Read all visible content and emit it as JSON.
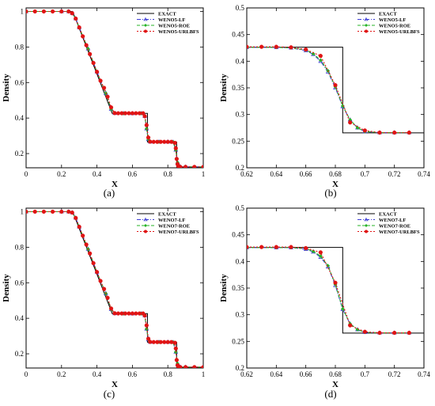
{
  "colors": {
    "exact": "#000000",
    "lf": "#3b3bd6",
    "roe": "#27b327",
    "urlbfs": "#e01414"
  },
  "chart_data": [
    {
      "panel": "(a)",
      "type": "line",
      "xlabel": "X",
      "ylabel": "Density",
      "xlim": [
        0,
        1
      ],
      "ylim": [
        0.12,
        1.02
      ],
      "xticks": [
        0,
        0.2,
        0.4,
        0.6,
        0.8,
        1
      ],
      "xtick_labels": [
        "0",
        "0.2",
        "0.4",
        "0.6",
        "0.8",
        "1"
      ],
      "yticks": [
        0.2,
        0.4,
        0.6,
        0.8,
        1
      ],
      "ytick_labels": [
        "0.2",
        "0.4",
        "0.6",
        "0.8",
        "1"
      ],
      "legend": [
        "EXACT",
        "WENO5-LF",
        "WENO5-ROE",
        "WENO5-URLBFS"
      ],
      "legend_position": "top-right",
      "exact": {
        "x": [
          0,
          0.263,
          0.486,
          0.685,
          0.685,
          0.85,
          0.85,
          1
        ],
        "y": [
          1,
          1,
          0.4263,
          0.4263,
          0.2656,
          0.2656,
          0.125,
          0.125
        ]
      },
      "series": [
        {
          "name": "WENO5-LF",
          "x": [
            0,
            0.2,
            0.24,
            0.26,
            0.28,
            0.3,
            0.35,
            0.4,
            0.45,
            0.48,
            0.5,
            0.55,
            0.6,
            0.65,
            0.67,
            0.68,
            0.69,
            0.7,
            0.75,
            0.8,
            0.83,
            0.845,
            0.855,
            0.87,
            0.9,
            1
          ],
          "y": [
            1,
            1,
            1,
            0.99,
            0.96,
            0.91,
            0.79,
            0.66,
            0.54,
            0.45,
            0.427,
            0.426,
            0.426,
            0.426,
            0.41,
            0.34,
            0.28,
            0.266,
            0.266,
            0.266,
            0.265,
            0.22,
            0.15,
            0.127,
            0.125,
            0.125
          ]
        },
        {
          "name": "WENO5-ROE",
          "x": [
            0,
            0.2,
            0.24,
            0.26,
            0.28,
            0.3,
            0.35,
            0.4,
            0.45,
            0.48,
            0.5,
            0.55,
            0.6,
            0.65,
            0.67,
            0.68,
            0.69,
            0.7,
            0.75,
            0.8,
            0.83,
            0.845,
            0.855,
            0.87,
            0.9,
            1
          ],
          "y": [
            1,
            1,
            1,
            0.99,
            0.96,
            0.91,
            0.79,
            0.66,
            0.54,
            0.45,
            0.427,
            0.426,
            0.426,
            0.426,
            0.41,
            0.34,
            0.28,
            0.266,
            0.266,
            0.266,
            0.265,
            0.22,
            0.15,
            0.127,
            0.125,
            0.125
          ]
        },
        {
          "name": "WENO5-URLBFS",
          "x": [
            0,
            0.05,
            0.1,
            0.15,
            0.2,
            0.24,
            0.26,
            0.28,
            0.3,
            0.32,
            0.34,
            0.36,
            0.38,
            0.4,
            0.42,
            0.44,
            0.46,
            0.48,
            0.5,
            0.52,
            0.54,
            0.56,
            0.58,
            0.6,
            0.62,
            0.64,
            0.66,
            0.67,
            0.68,
            0.69,
            0.7,
            0.72,
            0.74,
            0.76,
            0.78,
            0.8,
            0.82,
            0.84,
            0.845,
            0.85,
            0.855,
            0.86,
            0.87,
            0.9,
            0.95,
            1
          ],
          "y": [
            1,
            1,
            1,
            1,
            1,
            1,
            0.99,
            0.96,
            0.91,
            0.86,
            0.81,
            0.76,
            0.71,
            0.66,
            0.61,
            0.57,
            0.52,
            0.46,
            0.428,
            0.427,
            0.427,
            0.427,
            0.427,
            0.427,
            0.427,
            0.427,
            0.427,
            0.41,
            0.36,
            0.29,
            0.267,
            0.266,
            0.266,
            0.266,
            0.266,
            0.266,
            0.266,
            0.26,
            0.23,
            0.17,
            0.14,
            0.128,
            0.125,
            0.125,
            0.125,
            0.125
          ]
        }
      ]
    },
    {
      "panel": "(b)",
      "type": "line",
      "xlabel": "X",
      "ylabel": "Density",
      "xlim": [
        0.62,
        0.74
      ],
      "ylim": [
        0.2,
        0.5
      ],
      "xticks": [
        0.62,
        0.64,
        0.66,
        0.68,
        0.7,
        0.72,
        0.74
      ],
      "xtick_labels": [
        "0.62",
        "0.64",
        "0.66",
        "0.68",
        "0.7",
        "0.72",
        "0.74"
      ],
      "yticks": [
        0.2,
        0.25,
        0.3,
        0.35,
        0.4,
        0.45,
        0.5
      ],
      "ytick_labels": [
        "0.2",
        "0.25",
        "0.3",
        "0.35",
        "0.4",
        "0.45",
        "0.5"
      ],
      "legend": [
        "EXACT",
        "WENO5-LF",
        "WENO5-ROE",
        "WENO5-URLBFS"
      ],
      "legend_position": "top-right",
      "exact": {
        "x": [
          0.62,
          0.685,
          0.685,
          0.74
        ],
        "y": [
          0.4263,
          0.4263,
          0.2656,
          0.2656
        ]
      },
      "series": [
        {
          "name": "WENO5-LF",
          "x": [
            0.62,
            0.64,
            0.65,
            0.66,
            0.665,
            0.67,
            0.675,
            0.68,
            0.685,
            0.69,
            0.695,
            0.7,
            0.71,
            0.72,
            0.73
          ],
          "y": [
            0.426,
            0.426,
            0.425,
            0.42,
            0.413,
            0.4,
            0.38,
            0.35,
            0.315,
            0.29,
            0.275,
            0.268,
            0.266,
            0.266,
            0.266
          ]
        },
        {
          "name": "WENO5-ROE",
          "x": [
            0.62,
            0.64,
            0.65,
            0.66,
            0.665,
            0.67,
            0.675,
            0.68,
            0.685,
            0.69,
            0.695,
            0.7,
            0.71,
            0.72,
            0.73
          ],
          "y": [
            0.426,
            0.426,
            0.425,
            0.421,
            0.414,
            0.402,
            0.382,
            0.352,
            0.316,
            0.29,
            0.275,
            0.268,
            0.266,
            0.266,
            0.266
          ]
        },
        {
          "name": "WENO5-URLBFS",
          "x": [
            0.62,
            0.63,
            0.64,
            0.65,
            0.66,
            0.67,
            0.68,
            0.69,
            0.7,
            0.71,
            0.72,
            0.73
          ],
          "y": [
            0.427,
            0.427,
            0.427,
            0.426,
            0.422,
            0.41,
            0.355,
            0.285,
            0.27,
            0.266,
            0.266,
            0.266
          ]
        }
      ]
    },
    {
      "panel": "(c)",
      "type": "line",
      "xlabel": "X",
      "ylabel": "Density",
      "xlim": [
        0,
        1
      ],
      "ylim": [
        0.12,
        1.02
      ],
      "xticks": [
        0,
        0.2,
        0.4,
        0.6,
        0.8,
        1
      ],
      "xtick_labels": [
        "0",
        "0.2",
        "0.4",
        "0.6",
        "0.8",
        "1"
      ],
      "yticks": [
        0.2,
        0.4,
        0.6,
        0.8,
        1
      ],
      "ytick_labels": [
        "0.2",
        "0.4",
        "0.6",
        "0.8",
        "1"
      ],
      "legend": [
        "EXACT",
        "WENO7-LF",
        "WENO7-ROE",
        "WENO7-URLBFS"
      ],
      "legend_position": "top-right",
      "exact": {
        "x": [
          0,
          0.263,
          0.486,
          0.685,
          0.685,
          0.85,
          0.85,
          1
        ],
        "y": [
          1,
          1,
          0.4263,
          0.4263,
          0.2656,
          0.2656,
          0.125,
          0.125
        ]
      },
      "series": [
        {
          "name": "WENO7-LF",
          "x": [
            0,
            0.2,
            0.24,
            0.26,
            0.28,
            0.3,
            0.35,
            0.4,
            0.45,
            0.48,
            0.5,
            0.55,
            0.6,
            0.65,
            0.67,
            0.68,
            0.69,
            0.7,
            0.75,
            0.8,
            0.83,
            0.845,
            0.855,
            0.87,
            0.9,
            1
          ],
          "y": [
            1,
            1,
            1,
            0.995,
            0.965,
            0.915,
            0.79,
            0.66,
            0.54,
            0.45,
            0.427,
            0.426,
            0.426,
            0.426,
            0.415,
            0.34,
            0.28,
            0.266,
            0.266,
            0.266,
            0.265,
            0.21,
            0.145,
            0.126,
            0.125,
            0.125
          ]
        },
        {
          "name": "WENO7-ROE",
          "x": [
            0,
            0.2,
            0.24,
            0.26,
            0.28,
            0.3,
            0.35,
            0.4,
            0.45,
            0.48,
            0.5,
            0.55,
            0.6,
            0.65,
            0.67,
            0.68,
            0.69,
            0.7,
            0.75,
            0.8,
            0.83,
            0.845,
            0.855,
            0.87,
            0.9,
            1
          ],
          "y": [
            1,
            1,
            1,
            0.995,
            0.965,
            0.915,
            0.79,
            0.66,
            0.54,
            0.45,
            0.427,
            0.426,
            0.426,
            0.426,
            0.415,
            0.34,
            0.28,
            0.266,
            0.266,
            0.266,
            0.265,
            0.21,
            0.145,
            0.126,
            0.125,
            0.125
          ]
        },
        {
          "name": "WENO7-URLBFS",
          "x": [
            0,
            0.05,
            0.1,
            0.15,
            0.2,
            0.24,
            0.26,
            0.28,
            0.3,
            0.32,
            0.34,
            0.36,
            0.38,
            0.4,
            0.42,
            0.44,
            0.46,
            0.48,
            0.5,
            0.52,
            0.54,
            0.56,
            0.58,
            0.6,
            0.62,
            0.64,
            0.66,
            0.67,
            0.68,
            0.69,
            0.7,
            0.72,
            0.74,
            0.76,
            0.78,
            0.8,
            0.82,
            0.84,
            0.845,
            0.85,
            0.855,
            0.86,
            0.87,
            0.9,
            0.95,
            1
          ],
          "y": [
            1,
            1,
            1,
            1,
            1,
            1,
            0.995,
            0.965,
            0.915,
            0.865,
            0.815,
            0.765,
            0.71,
            0.66,
            0.61,
            0.565,
            0.515,
            0.455,
            0.428,
            0.427,
            0.427,
            0.427,
            0.427,
            0.427,
            0.427,
            0.427,
            0.427,
            0.415,
            0.36,
            0.285,
            0.267,
            0.266,
            0.266,
            0.266,
            0.266,
            0.266,
            0.266,
            0.262,
            0.23,
            0.165,
            0.135,
            0.127,
            0.125,
            0.125,
            0.125,
            0.125
          ]
        }
      ]
    },
    {
      "panel": "(d)",
      "type": "line",
      "xlabel": "X",
      "ylabel": "Density",
      "xlim": [
        0.62,
        0.74
      ],
      "ylim": [
        0.2,
        0.5
      ],
      "xticks": [
        0.62,
        0.64,
        0.66,
        0.68,
        0.7,
        0.72,
        0.74
      ],
      "xtick_labels": [
        "0.62",
        "0.64",
        "0.66",
        "0.68",
        "0.7",
        "0.72",
        "0.74"
      ],
      "yticks": [
        0.2,
        0.25,
        0.3,
        0.35,
        0.4,
        0.45,
        0.5
      ],
      "ytick_labels": [
        "0.2",
        "0.25",
        "0.3",
        "0.35",
        "0.4",
        "0.45",
        "0.5"
      ],
      "legend": [
        "EXACT",
        "WENO7-LF",
        "WENO7-ROE",
        "WENO7-URLBFS"
      ],
      "legend_position": "top-right",
      "exact": {
        "x": [
          0.62,
          0.685,
          0.685,
          0.74
        ],
        "y": [
          0.4263,
          0.4263,
          0.2656,
          0.2656
        ]
      },
      "series": [
        {
          "name": "WENO7-LF",
          "x": [
            0.62,
            0.64,
            0.65,
            0.66,
            0.665,
            0.67,
            0.675,
            0.68,
            0.685,
            0.69,
            0.695,
            0.7,
            0.71,
            0.72,
            0.73
          ],
          "y": [
            0.426,
            0.426,
            0.426,
            0.423,
            0.418,
            0.408,
            0.39,
            0.355,
            0.31,
            0.283,
            0.272,
            0.267,
            0.266,
            0.266,
            0.266
          ]
        },
        {
          "name": "WENO7-ROE",
          "x": [
            0.62,
            0.64,
            0.65,
            0.66,
            0.665,
            0.67,
            0.675,
            0.68,
            0.685,
            0.69,
            0.695,
            0.7,
            0.71,
            0.72,
            0.73
          ],
          "y": [
            0.426,
            0.426,
            0.426,
            0.424,
            0.419,
            0.41,
            0.392,
            0.357,
            0.311,
            0.283,
            0.272,
            0.267,
            0.266,
            0.266,
            0.266
          ]
        },
        {
          "name": "WENO7-URLBFS",
          "x": [
            0.62,
            0.63,
            0.64,
            0.65,
            0.66,
            0.67,
            0.68,
            0.69,
            0.7,
            0.71,
            0.72,
            0.73
          ],
          "y": [
            0.427,
            0.427,
            0.427,
            0.427,
            0.425,
            0.417,
            0.36,
            0.28,
            0.268,
            0.266,
            0.266,
            0.266
          ]
        }
      ]
    }
  ]
}
